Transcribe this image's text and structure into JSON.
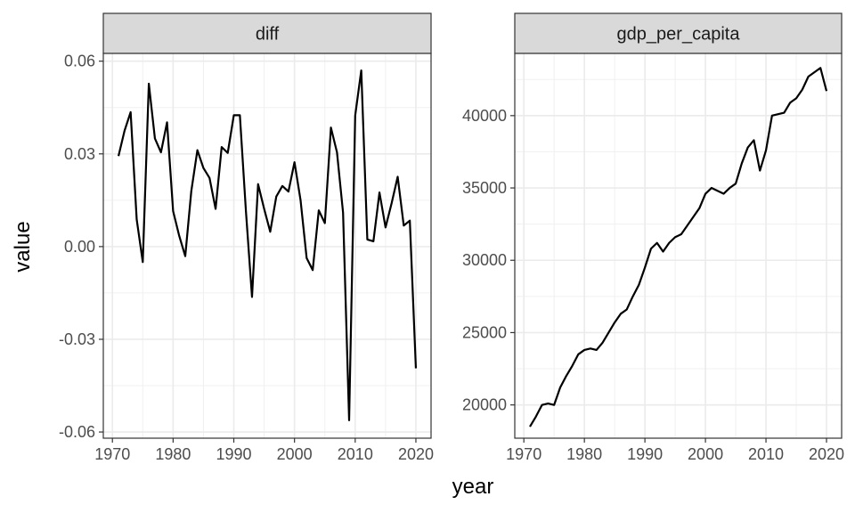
{
  "chart_data": {
    "type": "line",
    "xlabel": "year",
    "ylabel": "value",
    "grid": true,
    "panels": [
      {
        "strip": "diff",
        "ylim": [
          -0.062,
          0.0625
        ],
        "xlim": [
          1968.5,
          2022.5
        ],
        "y_ticks": [
          -0.06,
          -0.03,
          0,
          0.03,
          0.06
        ],
        "y_tick_labels": [
          "-0.06",
          "-0.03",
          "0.00",
          "0.03",
          "0.06"
        ],
        "x_ticks": [
          1970,
          1980,
          1990,
          2000,
          2010,
          2020
        ],
        "x_tick_labels": [
          "1970",
          "1980",
          "1990",
          "2000",
          "2010",
          "2020"
        ],
        "series": [
          {
            "x": [
              1971,
              1972,
              1973,
              1974,
              1975,
              1976,
              1977,
              1978,
              1979,
              1980,
              1981,
              1982,
              1983,
              1984,
              1985,
              1986,
              1987,
              1988,
              1989,
              1990,
              1991,
              1992,
              1993,
              1994,
              1995,
              1996,
              1997,
              1998,
              1999,
              2000,
              2001,
              2002,
              2003,
              2004,
              2005,
              2006,
              2007,
              2008,
              2009,
              2010,
              2011,
              2012,
              2013,
              2014,
              2015,
              2016,
              2017,
              2018,
              2019,
              2020
            ],
            "y": [
              0.0293,
              0.0375,
              0.0435,
              0.0088,
              -0.005,
              0.0527,
              0.035,
              0.0305,
              0.0402,
              0.0115,
              0.0035,
              -0.0031,
              0.018,
              0.0312,
              0.0254,
              0.0222,
              0.0122,
              0.0322,
              0.0303,
              0.0425,
              0.0425,
              0.0114,
              -0.0163,
              0.0202,
              0.0122,
              0.0048,
              0.0162,
              0.0196,
              0.0178,
              0.0273,
              0.015,
              -0.0037,
              -0.0076,
              0.0117,
              0.0076,
              0.0385,
              0.0305,
              0.011,
              -0.0562,
              0.0424,
              0.057,
              0.0023,
              0.0017,
              0.0175,
              0.0062,
              0.014,
              0.0226,
              0.0068,
              0.0084,
              -0.0394
            ]
          }
        ]
      },
      {
        "strip": "gdp_per_capita",
        "ylim": [
          17700,
          44300
        ],
        "xlim": [
          1968.5,
          2022.5
        ],
        "y_ticks": [
          20000,
          25000,
          30000,
          35000,
          40000
        ],
        "y_tick_labels": [
          "20000",
          "25000",
          "30000",
          "35000",
          "40000"
        ],
        "x_ticks": [
          1970,
          1980,
          1990,
          2000,
          2010,
          2020
        ],
        "x_tick_labels": [
          "1970",
          "1980",
          "1990",
          "2000",
          "2010",
          "2020"
        ],
        "series": [
          {
            "x": [
              1971,
              1972,
              1973,
              1974,
              1975,
              1976,
              1977,
              1978,
              1979,
              1980,
              1981,
              1982,
              1983,
              1984,
              1985,
              1986,
              1987,
              1988,
              1989,
              1990,
              1991,
              1992,
              1993,
              1994,
              1995,
              1996,
              1997,
              1998,
              1999,
              2000,
              2001,
              2002,
              2003,
              2004,
              2005,
              2006,
              2007,
              2008,
              2009,
              2010,
              2011,
              2012,
              2013,
              2014,
              2015,
              2016,
              2017,
              2018,
              2019,
              2020
            ],
            "y": [
              18500,
              19200,
              20000,
              20100,
              20000,
              21200,
              22000,
              22700,
              23500,
              23800,
              23900,
              23800,
              24300,
              25000,
              25700,
              26300,
              26600,
              27500,
              28300,
              29500,
              30800,
              31200,
              30600,
              31200,
              31600,
              31800,
              32400,
              33000,
              33600,
              34600,
              35000,
              34800,
              34600,
              35000,
              35300,
              36700,
              37800,
              38300,
              36200,
              37600,
              40000,
              40100,
              40200,
              40900,
              41200,
              41800,
              42700,
              43000,
              43300,
              41700
            ]
          }
        ]
      }
    ]
  }
}
